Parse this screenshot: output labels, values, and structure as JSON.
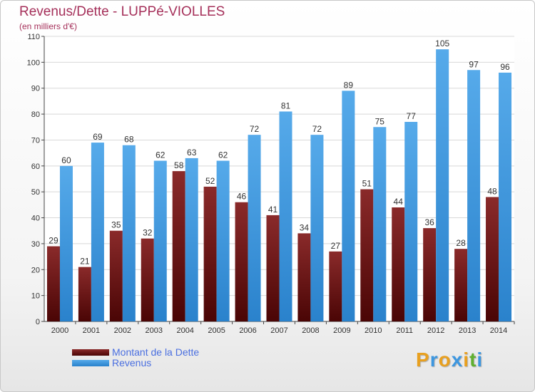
{
  "header": {
    "title": "Revenus/Dette - LUPPé-VIOLLES",
    "subtitle": "(en milliers d'€)"
  },
  "chart_data": {
    "type": "bar",
    "categories": [
      "2000",
      "2001",
      "2002",
      "2003",
      "2004",
      "2005",
      "2006",
      "2007",
      "2008",
      "2009",
      "2010",
      "2011",
      "2012",
      "2013",
      "2014"
    ],
    "series": [
      {
        "name": "Montant de la Dette",
        "values": [
          29,
          21,
          35,
          32,
          58,
          52,
          46,
          41,
          34,
          27,
          51,
          44,
          36,
          28,
          48
        ],
        "color": "#7a1a1a"
      },
      {
        "name": "Revenus",
        "values": [
          60,
          69,
          68,
          62,
          63,
          62,
          72,
          81,
          72,
          89,
          75,
          77,
          105,
          97,
          96
        ],
        "color": "#3d97e0"
      }
    ],
    "ylim": [
      0,
      110
    ],
    "yticks": [
      0,
      10,
      20,
      30,
      40,
      50,
      60,
      70,
      80,
      90,
      100,
      110
    ],
    "grid": true,
    "legend": "bottom-left"
  },
  "logo": {
    "letters": [
      "P",
      "r",
      "o",
      "x",
      "i",
      "t",
      "i"
    ],
    "colors": [
      "#e8a020",
      "#3d97e0",
      "#e8a020",
      "#3d97e0",
      "#e8a020",
      "#60b030",
      "#3d97e0"
    ]
  }
}
